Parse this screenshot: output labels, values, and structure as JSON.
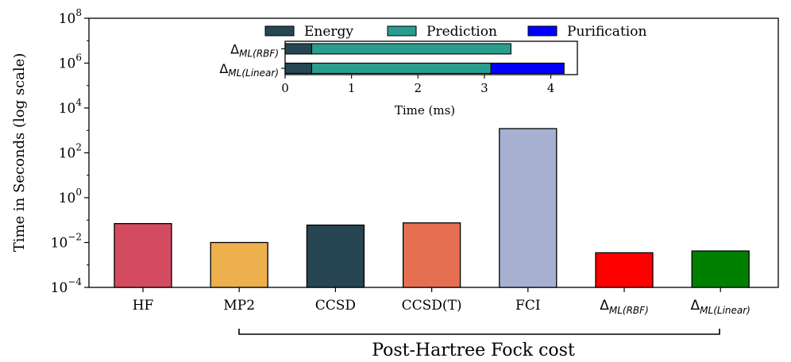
{
  "chart_data": [
    {
      "type": "bar",
      "scale": "log",
      "ylabel": "Time in Seconds (log scale)",
      "ylim": [
        0.0001,
        100000000
      ],
      "yticks": [
        {
          "base": "10",
          "exp": "8",
          "value": 100000000
        },
        {
          "base": "10",
          "exp": "6",
          "value": 1000000
        },
        {
          "base": "10",
          "exp": "4",
          "value": 10000
        },
        {
          "base": "10",
          "exp": "2",
          "value": 100
        },
        {
          "base": "10",
          "exp": "0",
          "value": 1
        },
        {
          "base": "10",
          "exp": "−2",
          "value": 0.01
        },
        {
          "base": "10",
          "exp": "−4",
          "value": 0.0001
        }
      ],
      "categories": [
        {
          "main": "HF",
          "sub": ""
        },
        {
          "main": "MP2",
          "sub": ""
        },
        {
          "main": "CCSD",
          "sub": ""
        },
        {
          "main": "CCSD(T)",
          "sub": ""
        },
        {
          "main": "FCI",
          "sub": ""
        },
        {
          "main": "Δ",
          "sub": "ML(RBF)"
        },
        {
          "main": "Δ",
          "sub": "ML(Linear)"
        }
      ],
      "values": [
        0.07,
        0.01,
        0.06,
        0.075,
        1200,
        0.0035,
        0.0042
      ],
      "colors": [
        "#d34b5f",
        "#ecb04c",
        "#264653",
        "#e76f51",
        "#a8b0d2",
        "#ff0000",
        "#008000"
      ],
      "bracket_label": "Post-Hartree Fock cost",
      "grid": false
    },
    {
      "type": "bar",
      "orientation": "horizontal",
      "stacked": true,
      "xlabel": "Time (ms)",
      "xlim": [
        0,
        4.4
      ],
      "xticks": [
        "0",
        "1",
        "2",
        "3",
        "4"
      ],
      "legend_position": "top",
      "categories": [
        {
          "main": "Δ",
          "sub": "ML(RBF)"
        },
        {
          "main": "Δ",
          "sub": "ML(Linear)"
        }
      ],
      "series": [
        {
          "name": "Energy",
          "color": "#264653",
          "values": [
            0.4,
            0.4
          ]
        },
        {
          "name": "Prediction",
          "color": "#2a9d8f",
          "values": [
            3.0,
            2.7
          ]
        },
        {
          "name": "Purification",
          "color": "#0000ff",
          "values": [
            0,
            1.1
          ]
        }
      ]
    }
  ]
}
